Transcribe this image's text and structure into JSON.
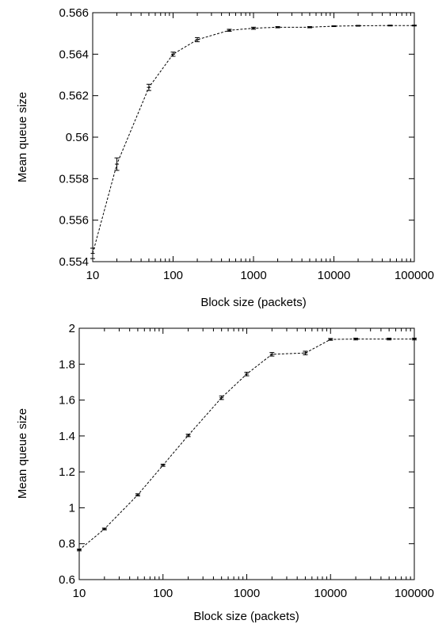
{
  "chart_data": [
    {
      "type": "line",
      "title": "",
      "xlabel": "Block size (packets)",
      "ylabel": "Mean queue size",
      "xscale": "log",
      "xlim": [
        10,
        100000
      ],
      "ylim": [
        0.554,
        0.566
      ],
      "x_ticks": [
        "10",
        "100",
        "1000",
        "10000",
        "100000"
      ],
      "y_ticks": [
        "0.554",
        "0.556",
        "0.558",
        "0.56",
        "0.562",
        "0.564",
        "0.566"
      ],
      "grid": false,
      "legend": "none",
      "series": [
        {
          "x": [
            10,
            20,
            50,
            100,
            200,
            500,
            1000,
            2000,
            5000,
            10000,
            20000,
            50000,
            100000
          ],
          "y": [
            0.5544,
            0.5587,
            0.5624,
            0.564,
            0.5647,
            0.56515,
            0.56525,
            0.5653,
            0.5653,
            0.56535,
            0.56537,
            0.56538,
            0.56538
          ],
          "err": [
            0.00025,
            0.0003,
            0.00015,
            0.0001,
            0.0001,
            5e-05,
            5e-05,
            3e-05,
            3e-05,
            2e-05,
            2e-05,
            2e-05,
            2e-05
          ]
        }
      ]
    },
    {
      "type": "line",
      "title": "",
      "xlabel": "Block size (packets)",
      "ylabel": "Mean queue size",
      "xscale": "log",
      "xlim": [
        10,
        100000
      ],
      "ylim": [
        0.6,
        2
      ],
      "x_ticks": [
        "10",
        "100",
        "1000",
        "10000",
        "100000"
      ],
      "y_ticks": [
        "0.6",
        "0.8",
        "1",
        "1.2",
        "1.4",
        "1.6",
        "1.8",
        "2"
      ],
      "grid": false,
      "legend": "none",
      "series": [
        {
          "x": [
            10,
            20,
            50,
            100,
            200,
            500,
            1000,
            2000,
            5000,
            10000,
            20000,
            50000,
            100000
          ],
          "y": [
            0.765,
            0.882,
            1.072,
            1.237,
            1.403,
            1.613,
            1.745,
            1.855,
            1.862,
            1.938,
            1.94,
            1.94,
            1.94
          ],
          "err": [
            0.005,
            0.005,
            0.006,
            0.006,
            0.007,
            0.01,
            0.01,
            0.01,
            0.01,
            0.005,
            0.005,
            0.005,
            0.005
          ]
        }
      ]
    }
  ]
}
